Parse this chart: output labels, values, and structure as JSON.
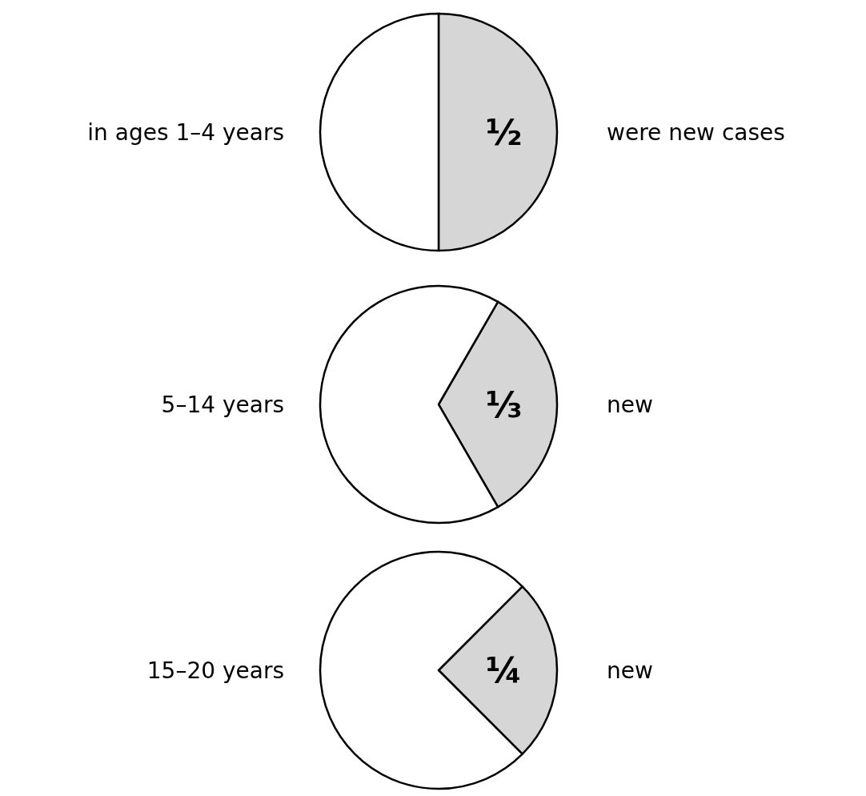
{
  "chart_data": [
    {
      "type": "pie",
      "title": "in ages 1–4 years",
      "annotations": [
        "were new cases"
      ],
      "categories": [
        null,
        null
      ],
      "values": [
        50,
        50
      ],
      "colors": [
        "#d6d6d6",
        "#ffffff"
      ],
      "value_labels": [
        "½",
        null
      ]
    },
    {
      "type": "pie",
      "title": "5–14 years",
      "annotations": [
        "new"
      ],
      "categories": [
        null,
        null
      ],
      "values": [
        33.3,
        66.7
      ],
      "colors": [
        "#d6d6d6",
        "#ffffff"
      ],
      "value_labels": [
        "⅓",
        null
      ]
    },
    {
      "type": "pie",
      "title": "15–20 years",
      "annotations": [
        "new"
      ],
      "categories": [
        null,
        null
      ],
      "values": [
        25,
        75
      ],
      "colors": [
        "#d6d6d6",
        "#ffffff"
      ],
      "value_labels": [
        "¼",
        null
      ]
    }
  ]
}
